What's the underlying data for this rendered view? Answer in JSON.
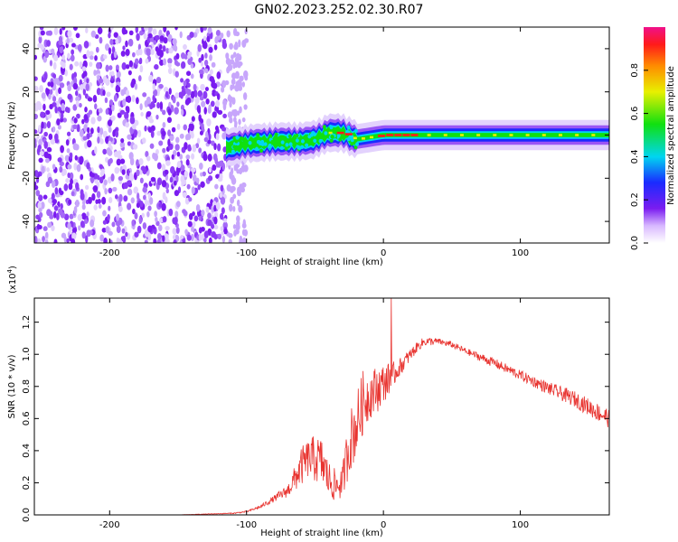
{
  "title": "GN02.2023.252.02.30.R07",
  "colors": {
    "snr_line": "#e8332f",
    "noise_dots": "#7a1cf0",
    "axis": "#000000"
  },
  "chart_data": [
    {
      "type": "heatmap",
      "xlabel": "Height of straight line (km)",
      "ylabel": "Frequency (Hz)",
      "xlim": [
        -255,
        165
      ],
      "ylim": [
        -50,
        50
      ],
      "xticks": [
        -200,
        -100,
        0,
        100
      ],
      "yticks": [
        -40,
        -20,
        0,
        20,
        40
      ],
      "colorbar": {
        "label": "Normalized spectral amplitude",
        "range": [
          0.0,
          1.0
        ],
        "ticks": [
          0.0,
          0.2,
          0.4,
          0.6,
          0.8
        ],
        "colormap": "rainbow (white-violet-blue-cyan-green-yellow-red-magenta)"
      },
      "ridge": {
        "description": "frequency ridge center (Hz) vs height (km)",
        "x": [
          -115,
          -100,
          -80,
          -60,
          -50,
          -40,
          -30,
          -20,
          -10,
          0,
          50,
          100,
          165
        ],
        "y": [
          -6,
          -4,
          -3,
          -3,
          -2,
          1,
          1,
          -2,
          -1,
          0,
          0,
          0,
          0
        ]
      },
      "noise_region_x": [
        -255,
        -100
      ]
    },
    {
      "type": "line",
      "xlabel": "Height of straight line (km)",
      "ylabel": "SNR (10 * v/v)",
      "y_multiplier": "(x10",
      "y_multiplier_exp": "4",
      "y_multiplier_close": ")",
      "xlim": [
        -255,
        165
      ],
      "ylim": [
        0.0,
        1.35
      ],
      "xticks": [
        -200,
        -100,
        0,
        100
      ],
      "yticks": [
        0.0,
        0.2,
        0.4,
        0.6,
        0.8,
        1.0,
        1.2
      ],
      "ytick_labels": [
        "0.0",
        "0.2",
        "0.4",
        "0.6",
        "0.8",
        "1.0",
        "1.2"
      ],
      "series": [
        {
          "x": [
            -255,
            -150,
            -110,
            -100,
            -90,
            -80,
            -70,
            -65,
            -60,
            -55,
            -50,
            -45,
            -40,
            -35,
            -30,
            -25,
            -20,
            -15,
            -10,
            -5,
            0,
            5,
            10,
            15,
            20,
            25,
            30,
            40,
            50,
            60,
            80,
            100,
            120,
            140,
            165
          ],
          "y": [
            0.0,
            0.0,
            0.01,
            0.02,
            0.05,
            0.1,
            0.15,
            0.22,
            0.3,
            0.35,
            0.35,
            0.33,
            0.22,
            0.18,
            0.2,
            0.45,
            0.55,
            0.7,
            0.75,
            0.78,
            0.82,
            0.85,
            0.9,
            0.95,
            1.0,
            1.05,
            1.08,
            1.08,
            1.06,
            1.02,
            0.95,
            0.87,
            0.79,
            0.72,
            0.6
          ],
          "noise_amplitude": [
            0.0,
            0.0,
            0.003,
            0.005,
            0.01,
            0.02,
            0.04,
            0.08,
            0.12,
            0.12,
            0.15,
            0.15,
            0.12,
            0.1,
            0.1,
            0.2,
            0.2,
            0.2,
            0.15,
            0.15,
            0.12,
            0.1,
            0.06,
            0.05,
            0.04,
            0.03,
            0.03,
            0.02,
            0.02,
            0.02,
            0.03,
            0.03,
            0.04,
            0.05,
            0.06
          ]
        }
      ]
    }
  ]
}
